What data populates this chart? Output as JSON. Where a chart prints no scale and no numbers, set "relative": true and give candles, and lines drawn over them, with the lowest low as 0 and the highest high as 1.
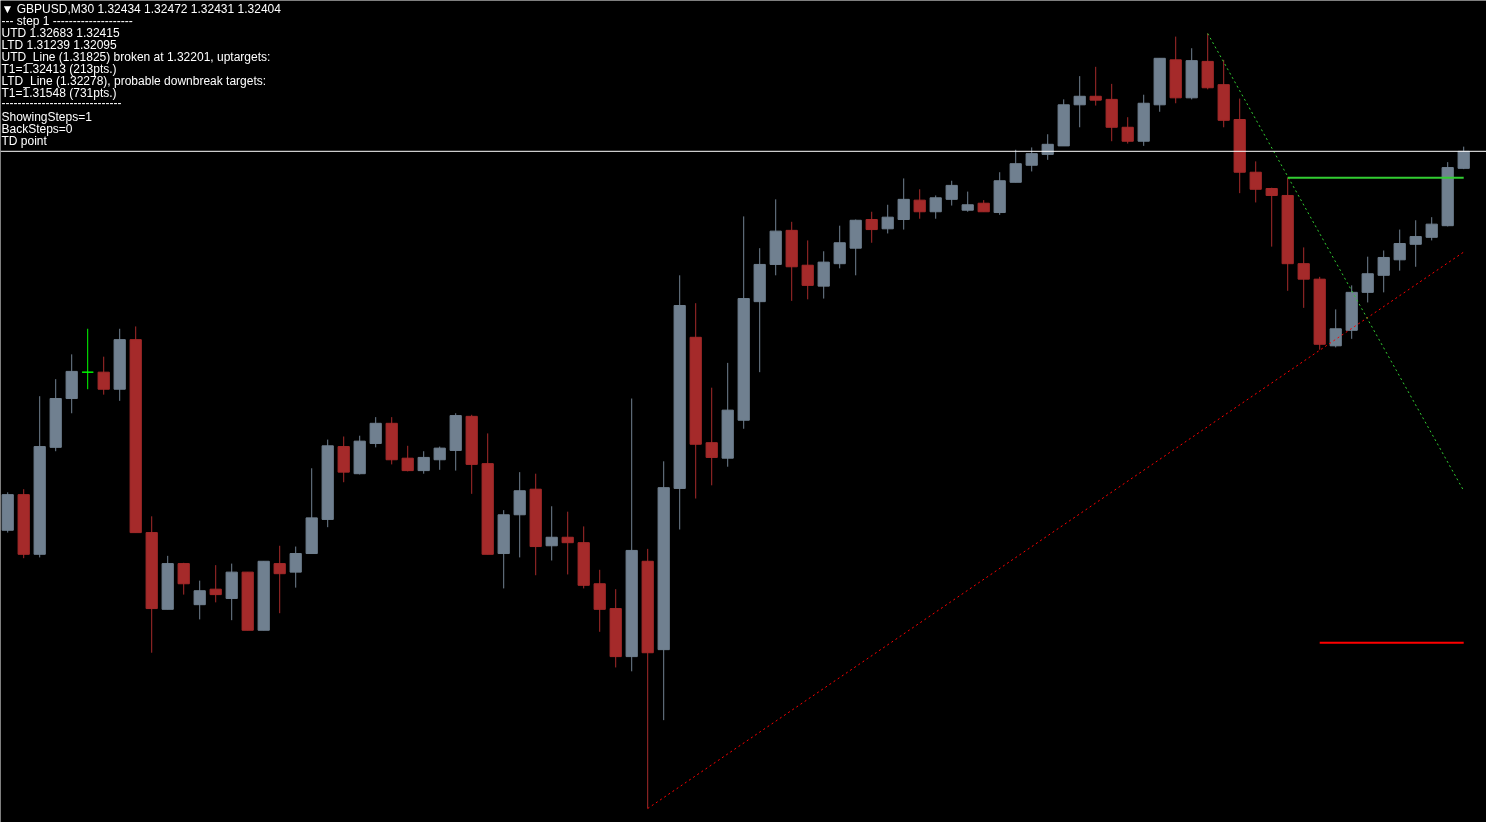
{
  "chart_data": {
    "type": "candlestick",
    "relative": true,
    "tick_labels": false,
    "categories": [
      null,
      null,
      null,
      null,
      null,
      null,
      null,
      null,
      null,
      null,
      null,
      null,
      null,
      null,
      null,
      null,
      null,
      null,
      null,
      null,
      null,
      null,
      null,
      null,
      null,
      null,
      null,
      null,
      null,
      null,
      null,
      null,
      null,
      null,
      null,
      null,
      null,
      null,
      null,
      null,
      null,
      null,
      null,
      null,
      null,
      null,
      null,
      null,
      null,
      null,
      null,
      null,
      null,
      null,
      null,
      null,
      null,
      null,
      null,
      null,
      null,
      null,
      null,
      null,
      null,
      null,
      null,
      null,
      null,
      null,
      null,
      null,
      null,
      null,
      null,
      null,
      null,
      null,
      null,
      null,
      null,
      null,
      null,
      null,
      null,
      null,
      null,
      null,
      null,
      null,
      null,
      null
    ],
    "ohlc": [
      [
        0.359,
        0.408,
        0.356,
        0.405
      ],
      [
        0.405,
        0.412,
        0.323,
        0.328
      ],
      [
        0.328,
        0.532,
        0.324,
        0.467
      ],
      [
        0.466,
        0.554,
        0.461,
        0.529
      ],
      [
        0.529,
        0.586,
        0.51,
        0.564
      ],
      [
        0.563,
        0.619,
        0.541,
        0.563
      ],
      [
        0.563,
        0.583,
        0.534,
        0.541
      ],
      [
        0.541,
        0.619,
        0.526,
        0.605
      ],
      [
        0.605,
        0.622,
        0.356,
        0.356
      ],
      [
        0.356,
        0.377,
        0.201,
        0.258
      ],
      [
        0.257,
        0.326,
        0.257,
        0.316
      ],
      [
        0.316,
        0.317,
        0.276,
        0.29
      ],
      [
        0.263,
        0.294,
        0.244,
        0.281
      ],
      [
        0.283,
        0.314,
        0.266,
        0.276
      ],
      [
        0.271,
        0.316,
        0.243,
        0.305
      ],
      [
        0.305,
        0.305,
        0.23,
        0.23
      ],
      [
        0.23,
        0.319,
        0.23,
        0.319
      ],
      [
        0.316,
        0.339,
        0.252,
        0.303
      ],
      [
        0.305,
        0.338,
        0.285,
        0.329
      ],
      [
        0.329,
        0.439,
        0.329,
        0.375
      ],
      [
        0.373,
        0.476,
        0.363,
        0.468
      ],
      [
        0.467,
        0.48,
        0.421,
        0.434
      ],
      [
        0.432,
        0.481,
        0.431,
        0.474
      ],
      [
        0.471,
        0.505,
        0.466,
        0.497
      ],
      [
        0.497,
        0.505,
        0.444,
        0.45
      ],
      [
        0.452,
        0.468,
        0.435,
        0.436
      ],
      [
        0.436,
        0.461,
        0.432,
        0.453
      ],
      [
        0.45,
        0.467,
        0.437,
        0.465
      ],
      [
        0.462,
        0.51,
        0.436,
        0.507
      ],
      [
        0.506,
        0.508,
        0.406,
        0.444
      ],
      [
        0.445,
        0.484,
        0.328,
        0.328
      ],
      [
        0.329,
        0.385,
        0.284,
        0.379
      ],
      [
        0.379,
        0.434,
        0.324,
        0.41
      ],
      [
        0.412,
        0.432,
        0.301,
        0.338
      ],
      [
        0.339,
        0.39,
        0.32,
        0.35
      ],
      [
        0.35,
        0.383,
        0.302,
        0.343
      ],
      [
        0.343,
        0.364,
        0.284,
        0.288
      ],
      [
        0.29,
        0.308,
        0.228,
        0.257
      ],
      [
        0.258,
        0.283,
        0.182,
        0.196
      ],
      [
        0.196,
        0.529,
        0.177,
        0.333
      ],
      [
        0.319,
        0.335,
        0,
        0.201
      ],
      [
        0.205,
        0.448,
        0.114,
        0.414
      ],
      [
        0.413,
        0.688,
        0.36,
        0.649
      ],
      [
        0.608,
        0.652,
        0.4,
        0.47
      ],
      [
        0.472,
        0.543,
        0.417,
        0.453
      ],
      [
        0.452,
        0.575,
        0.441,
        0.514
      ],
      [
        0.501,
        0.764,
        0.49,
        0.658
      ],
      [
        0.654,
        0.723,
        0.563,
        0.702
      ],
      [
        0.702,
        0.786,
        0.688,
        0.745
      ],
      [
        0.746,
        0.757,
        0.655,
        0.699
      ],
      [
        0.701,
        0.733,
        0.657,
        0.675
      ],
      [
        0.674,
        0.719,
        0.658,
        0.705
      ],
      [
        0.703,
        0.752,
        0.697,
        0.73
      ],
      [
        0.723,
        0.76,
        0.688,
        0.759
      ],
      [
        0.76,
        0.77,
        0.73,
        0.747
      ],
      [
        0.748,
        0.779,
        0.742,
        0.763
      ],
      [
        0.76,
        0.813,
        0.747,
        0.786
      ],
      [
        0.785,
        0.799,
        0.761,
        0.77
      ],
      [
        0.77,
        0.791,
        0.761,
        0.788
      ],
      [
        0.786,
        0.81,
        0.778,
        0.804
      ],
      [
        0.772,
        0.796,
        0.77,
        0.779
      ],
      [
        0.781,
        0.785,
        0.77,
        0.77
      ],
      [
        0.769,
        0.821,
        0.766,
        0.81
      ],
      [
        0.808,
        0.85,
        0.808,
        0.832
      ],
      [
        0.83,
        0.853,
        0.822,
        0.845
      ],
      [
        0.844,
        0.87,
        0.837,
        0.857
      ],
      [
        0.855,
        0.915,
        0.855,
        0.908
      ],
      [
        0.908,
        0.945,
        0.879,
        0.919
      ],
      [
        0.919,
        0.957,
        0.907,
        0.914
      ],
      [
        0.915,
        0.935,
        0.861,
        0.879
      ],
      [
        0.879,
        0.892,
        0.858,
        0.861
      ],
      [
        0.861,
        0.921,
        0.855,
        0.91
      ],
      [
        0.908,
        0.968,
        0.899,
        0.968
      ],
      [
        0.966,
        0.996,
        0.91,
        0.917
      ],
      [
        0.917,
        0.981,
        0.915,
        0.965
      ],
      [
        0.964,
        1,
        0.928,
        0.93
      ],
      [
        0.934,
        0.966,
        0.879,
        0.888
      ],
      [
        0.889,
        0.916,
        0.794,
        0.821
      ],
      [
        0.821,
        0.835,
        0.782,
        0.799
      ],
      [
        0.8,
        0.801,
        0.725,
        0.791
      ],
      [
        0.791,
        0.814,
        0.668,
        0.703
      ],
      [
        0.703,
        0.724,
        0.646,
        0.683
      ],
      [
        0.683,
        0.686,
        0.592,
        0.599
      ],
      [
        0.597,
        0.644,
        0.595,
        0.619
      ],
      [
        0.617,
        0.675,
        0.606,
        0.666
      ],
      [
        0.666,
        0.712,
        0.653,
        0.69
      ],
      [
        0.688,
        0.72,
        0.666,
        0.711
      ],
      [
        0.708,
        0.747,
        0.694,
        0.729
      ],
      [
        0.728,
        0.759,
        0.699,
        0.738
      ],
      [
        0.737,
        0.763,
        0.733,
        0.754
      ],
      [
        0.752,
        0.834,
        0.751,
        0.827
      ],
      [
        0.826,
        0.854,
        0.825,
        0.848
      ]
    ],
    "colors": [
      "#708090",
      "#a52a2a",
      "#708090",
      "#708090",
      "#708090",
      "#00ff00",
      "#a52a2a",
      "#708090",
      "#a52a2a",
      "#a52a2a",
      "#708090",
      "#a52a2a",
      "#708090",
      "#a52a2a",
      "#708090",
      "#a52a2a",
      "#708090",
      "#a52a2a",
      "#708090",
      "#708090",
      "#708090",
      "#a52a2a",
      "#708090",
      "#708090",
      "#a52a2a",
      "#a52a2a",
      "#708090",
      "#708090",
      "#708090",
      "#a52a2a",
      "#a52a2a",
      "#708090",
      "#708090",
      "#a52a2a",
      "#708090",
      "#a52a2a",
      "#a52a2a",
      "#a52a2a",
      "#a52a2a",
      "#708090",
      "#a52a2a",
      "#708090",
      "#708090",
      "#a52a2a",
      "#a52a2a",
      "#708090",
      "#708090",
      "#708090",
      "#708090",
      "#a52a2a",
      "#a52a2a",
      "#708090",
      "#708090",
      "#708090",
      "#a52a2a",
      "#708090",
      "#708090",
      "#a52a2a",
      "#708090",
      "#708090",
      "#708090",
      "#a52a2a",
      "#708090",
      "#708090",
      "#708090",
      "#708090",
      "#708090",
      "#708090",
      "#a52a2a",
      "#a52a2a",
      "#a52a2a",
      "#708090",
      "#708090",
      "#a52a2a",
      "#708090",
      "#a52a2a",
      "#a52a2a",
      "#a52a2a",
      "#a52a2a",
      "#a52a2a",
      "#a52a2a",
      "#a52a2a",
      "#a52a2a",
      "#708090",
      "#708090",
      "#708090",
      "#708090",
      "#708090",
      "#708090",
      "#708090",
      "#708090",
      "#708090"
    ],
    "series": [
      {
        "type": "line",
        "values": [
          null,
          null,
          null,
          null,
          null,
          null,
          null,
          null,
          null,
          null,
          null,
          null,
          null,
          null,
          null,
          null,
          null,
          null,
          null,
          null,
          null,
          null,
          null,
          null,
          null,
          null,
          null,
          null,
          null,
          null,
          null,
          null,
          null,
          null,
          null,
          null,
          null,
          null,
          null,
          null,
          0,
          null,
          null,
          null,
          null,
          null,
          null,
          null,
          null,
          null,
          null,
          null,
          null,
          null,
          null,
          null,
          null,
          null,
          null,
          null,
          null,
          null,
          null,
          null,
          null,
          null,
          null,
          null,
          null,
          null,
          null,
          null,
          null,
          null,
          null,
          null,
          null,
          null,
          null,
          null,
          null,
          null,
          null,
          null,
          null,
          null,
          null,
          null,
          null,
          null,
          null,
          0.718
        ],
        "color": "#ff0000",
        "line_style": "dotted"
      },
      {
        "type": "line",
        "values": [
          null,
          null,
          null,
          null,
          null,
          null,
          null,
          null,
          null,
          null,
          null,
          null,
          null,
          null,
          null,
          null,
          null,
          null,
          null,
          null,
          null,
          null,
          null,
          null,
          null,
          null,
          null,
          null,
          null,
          null,
          null,
          null,
          null,
          null,
          null,
          null,
          null,
          null,
          null,
          null,
          null,
          null,
          null,
          null,
          null,
          null,
          null,
          null,
          null,
          null,
          null,
          null,
          null,
          null,
          null,
          null,
          null,
          null,
          null,
          null,
          null,
          null,
          null,
          null,
          null,
          null,
          null,
          null,
          null,
          null,
          null,
          null,
          null,
          null,
          null,
          1,
          null,
          null,
          null,
          null,
          null,
          null,
          null,
          null,
          null,
          null,
          null,
          null,
          null,
          null,
          null,
          0.41
        ],
        "color": "#32cd32",
        "line_style": "dotted"
      },
      {
        "type": "line",
        "values": [
          null,
          null,
          null,
          null,
          null,
          null,
          null,
          null,
          null,
          null,
          null,
          null,
          null,
          null,
          null,
          null,
          null,
          null,
          null,
          null,
          null,
          null,
          null,
          null,
          null,
          null,
          null,
          null,
          null,
          null,
          null,
          null,
          null,
          null,
          null,
          null,
          null,
          null,
          null,
          null,
          null,
          null,
          null,
          null,
          null,
          null,
          null,
          null,
          null,
          null,
          null,
          null,
          null,
          null,
          null,
          null,
          null,
          null,
          null,
          null,
          null,
          null,
          null,
          null,
          null,
          null,
          null,
          null,
          null,
          null,
          null,
          null,
          null,
          null,
          null,
          null,
          null,
          null,
          null,
          null,
          0.814,
          null,
          null,
          null,
          null,
          null,
          null,
          null,
          null,
          null,
          null,
          0.814
        ],
        "color": "#32cd32",
        "line_style": "solid"
      },
      {
        "type": "line",
        "values": [
          null,
          null,
          null,
          null,
          null,
          null,
          null,
          null,
          null,
          null,
          null,
          null,
          null,
          null,
          null,
          null,
          null,
          null,
          null,
          null,
          null,
          null,
          null,
          null,
          null,
          null,
          null,
          null,
          null,
          null,
          null,
          null,
          null,
          null,
          null,
          null,
          null,
          null,
          null,
          null,
          null,
          null,
          null,
          null,
          null,
          null,
          null,
          null,
          null,
          null,
          null,
          null,
          null,
          null,
          null,
          null,
          null,
          null,
          null,
          null,
          null,
          null,
          null,
          null,
          null,
          null,
          null,
          null,
          null,
          null,
          null,
          null,
          null,
          null,
          null,
          null,
          null,
          null,
          null,
          null,
          null,
          null,
          0.214,
          null,
          null,
          null,
          null,
          null,
          null,
          null,
          null,
          0.214
        ],
        "color": "#ff0000",
        "line_style": "solid"
      }
    ],
    "ref_lines": [
      {
        "axis": "y",
        "value": 0.848,
        "color": "#ffffff"
      }
    ],
    "annotations": [
      "▼ GBPUSD,M30  1.32434 1.32472 1.32431 1.32404",
      "---    step 1    --------------------",
      "UTD 1.32683  1.32415",
      "LTD  1.31239  1.32095",
      "UTD_Line (1.31825) broken at 1.32201, uptargets:",
      "T1=1.32413 (213pts.)",
      "LTD_Line (1.32278), probable downbreak targets:",
      "T1=1.31548 (731pts.)",
      "------------------------------",
      "ShowingSteps=1",
      "BackSteps=0",
      "TD point"
    ]
  }
}
